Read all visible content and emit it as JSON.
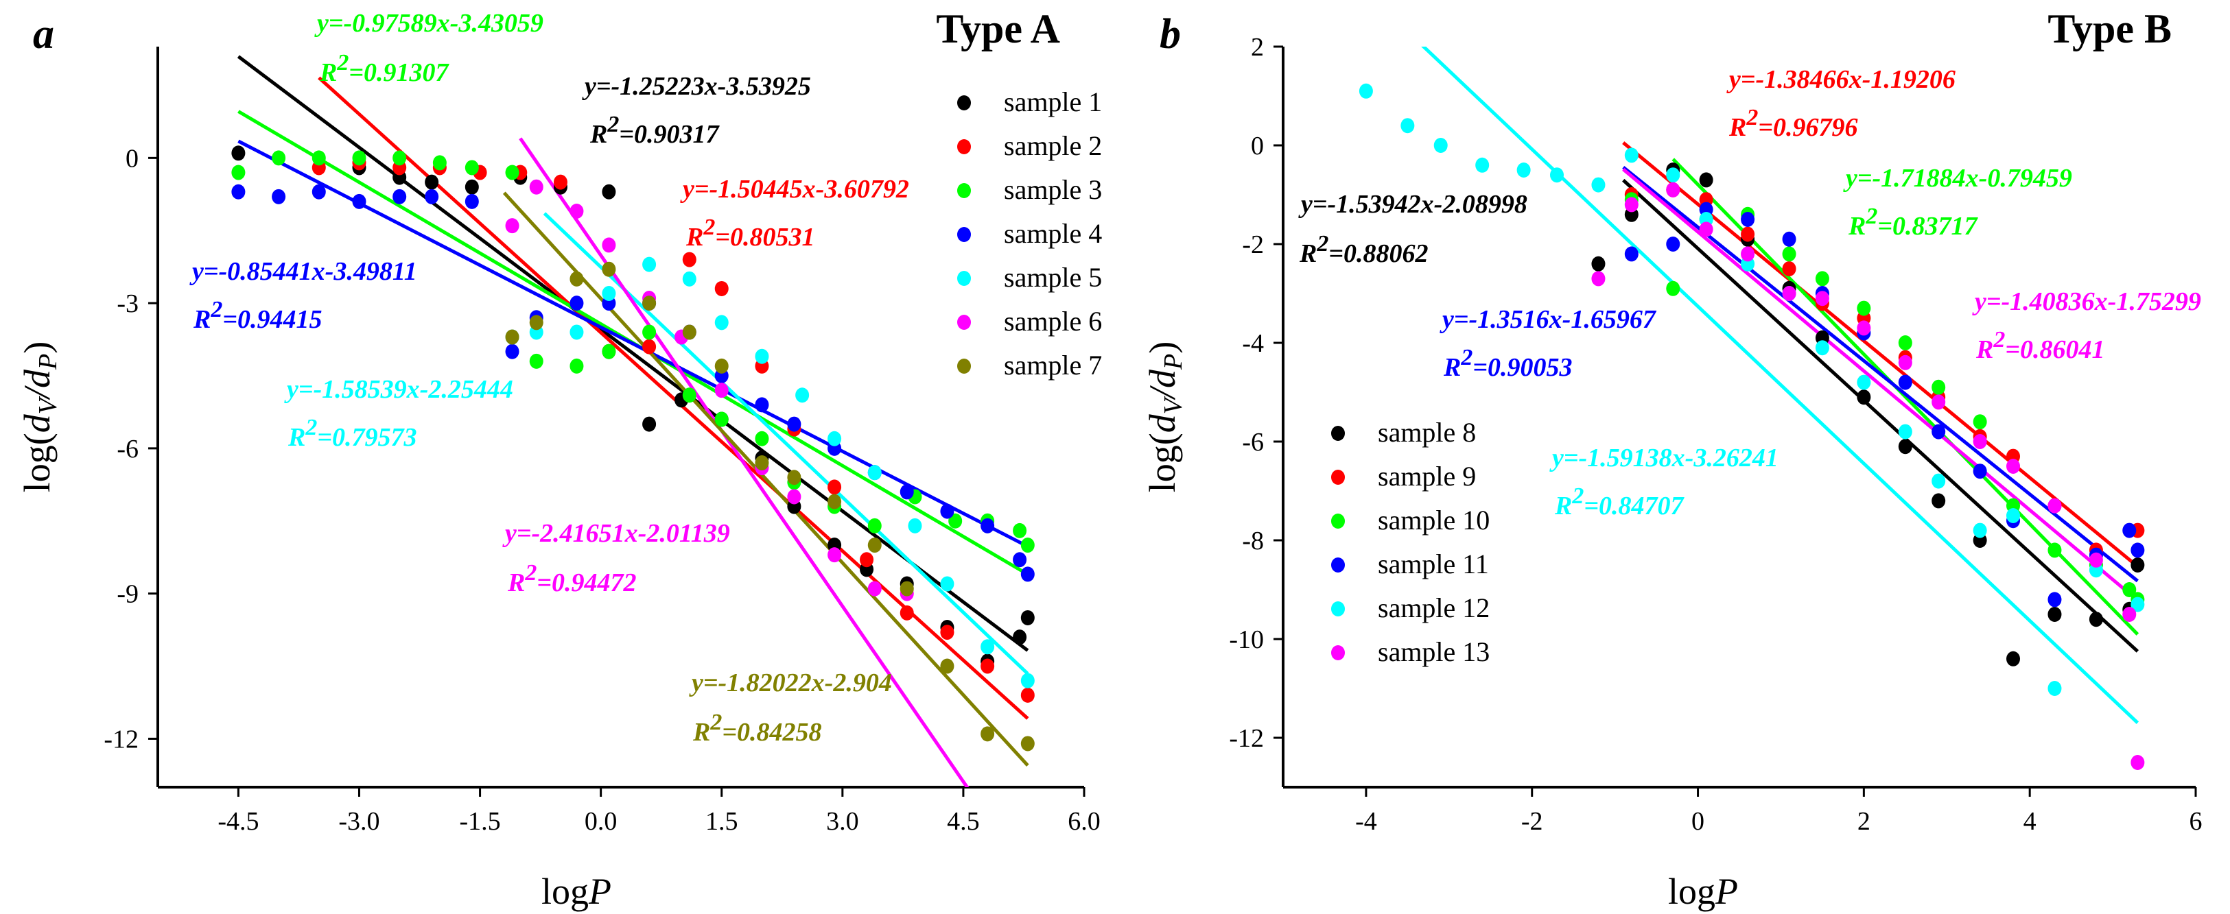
{
  "chart_data": [
    {
      "type": "scatter",
      "panel_letter": "a",
      "title": "Type A",
      "ylabel_main": "log(",
      "ylabel_d1": "d",
      "ylabel_s1": "V",
      "ylabel_slash": "/",
      "ylabel_d2": "d",
      "ylabel_s2": "P",
      "ylabel_close": ")",
      "xlabel_main": "log",
      "xlabel_var": "P",
      "xlim": [
        -5.5,
        6.0
      ],
      "ylim": [
        -13.0,
        2.3
      ],
      "xticks": [
        -4.5,
        -3.0,
        -1.5,
        0.0,
        1.5,
        3.0,
        4.5,
        6.0
      ],
      "xtick_labels": [
        "-4.5",
        "-3.0",
        "-1.5",
        "0.0",
        "1.5",
        "3.0",
        "4.5",
        "6.0"
      ],
      "yticks": [
        0,
        -3,
        -6,
        -9,
        -12
      ],
      "ytick_labels": [
        "0",
        "-3",
        "-6",
        "-9",
        "-12"
      ],
      "legend_position": "top-right",
      "series": [
        {
          "name": "sample 1",
          "color": "#000000",
          "slope": -1.25223,
          "intercept": -3.53925,
          "line_range": [
            -4.5,
            5.3
          ],
          "equation": "y=-1.25223x-3.53925",
          "r2_prefix": "R",
          "r2_exp": "2",
          "r2_value": "=0.90317",
          "x": [
            -4.5,
            -3.0,
            -2.5,
            -2.1,
            -1.6,
            -1.0,
            -0.5,
            0.1,
            0.6,
            1.0,
            1.5,
            2.0,
            2.4,
            2.9,
            3.3,
            3.8,
            4.3,
            4.8,
            5.2,
            5.3
          ],
          "y": [
            0.1,
            -0.2,
            -0.4,
            -0.5,
            -0.6,
            -0.4,
            -0.6,
            -0.7,
            -5.5,
            -5.0,
            -5.4,
            -6.2,
            -7.2,
            -8.0,
            -8.5,
            -8.8,
            -9.7,
            -10.4,
            -9.9,
            -9.5
          ]
        },
        {
          "name": "sample 2",
          "color": "#ff0000",
          "slope": -1.50445,
          "intercept": -3.60792,
          "line_range": [
            -3.5,
            5.3
          ],
          "equation": "y=-1.50445x-3.60792",
          "r2_prefix": "R",
          "r2_exp": "2",
          "r2_value": "=0.80531",
          "x": [
            -3.5,
            -3.0,
            -2.5,
            -2.0,
            -1.5,
            -1.0,
            -0.5,
            0.1,
            0.6,
            1.1,
            1.5,
            2.0,
            2.4,
            2.9,
            3.3,
            3.8,
            4.3,
            4.8,
            5.3
          ],
          "y": [
            -0.2,
            -0.1,
            -0.2,
            -0.2,
            -0.3,
            -0.3,
            -0.5,
            -4.0,
            -3.9,
            -2.1,
            -2.7,
            -4.3,
            -5.6,
            -6.8,
            -8.3,
            -9.4,
            -9.8,
            -10.5,
            -11.1
          ]
        },
        {
          "name": "sample 3",
          "color": "#00ff00",
          "slope": -0.97589,
          "intercept": -3.43059,
          "line_range": [
            -4.5,
            5.3
          ],
          "equation": "y=-0.97589x-3.43059",
          "r2_prefix": "R",
          "r2_exp": "2",
          "r2_value": "=0.91307",
          "x": [
            -4.5,
            -4.0,
            -3.5,
            -3.0,
            -2.5,
            -2.0,
            -1.6,
            -1.1,
            -0.8,
            -0.3,
            0.1,
            0.6,
            1.1,
            1.5,
            2.0,
            2.4,
            2.9,
            3.4,
            3.9,
            4.4,
            4.8,
            5.2,
            5.3
          ],
          "y": [
            -0.3,
            0.0,
            0.0,
            0.0,
            0.0,
            -0.1,
            -0.2,
            -0.3,
            -4.2,
            -4.3,
            -4.0,
            -3.6,
            -4.9,
            -5.4,
            -5.8,
            -6.7,
            -7.2,
            -7.6,
            -7.0,
            -7.5,
            -7.5,
            -7.7,
            -8.0
          ]
        },
        {
          "name": "sample 4",
          "color": "#0000ff",
          "slope": -0.85441,
          "intercept": -3.49811,
          "line_range": [
            -4.5,
            5.3
          ],
          "equation": "y=-0.85441x-3.49811",
          "r2_prefix": "R",
          "r2_exp": "2",
          "r2_value": "=0.94415",
          "x": [
            -4.5,
            -4.0,
            -3.5,
            -3.0,
            -2.5,
            -2.1,
            -1.6,
            -1.1,
            -0.8,
            -0.3,
            0.1,
            0.6,
            1.1,
            1.5,
            2.0,
            2.4,
            2.9,
            3.4,
            3.8,
            4.3,
            4.8,
            5.2,
            5.3
          ],
          "y": [
            -0.7,
            -0.8,
            -0.7,
            -0.9,
            -0.8,
            -0.8,
            -0.9,
            -4.0,
            -3.3,
            -3.0,
            -3.0,
            -3.0,
            -3.6,
            -4.5,
            -5.1,
            -5.5,
            -6.0,
            -6.5,
            -6.9,
            -7.3,
            -7.6,
            -8.3,
            -8.6
          ]
        },
        {
          "name": "sample 5",
          "color": "#00ffff",
          "slope": -1.58539,
          "intercept": -2.25444,
          "line_range": [
            -0.7,
            5.3
          ],
          "equation": "y=-1.58539x-2.25444",
          "r2_prefix": "R",
          "r2_exp": "2",
          "r2_value": "=0.79573",
          "x": [
            -1.1,
            -0.8,
            -0.3,
            0.1,
            0.6,
            1.1,
            1.5,
            2.0,
            2.5,
            2.9,
            3.4,
            3.9,
            4.3,
            4.8,
            5.3
          ],
          "y": [
            -3.7,
            -3.6,
            -3.6,
            -2.8,
            -2.2,
            -2.5,
            -3.4,
            -4.1,
            -4.9,
            -5.8,
            -6.5,
            -7.6,
            -8.8,
            -10.1,
            -10.8
          ]
        },
        {
          "name": "sample 6",
          "color": "#ff00ff",
          "slope": -2.41651,
          "intercept": -2.01139,
          "line_range": [
            -1.0,
            4.7
          ],
          "equation": "y=-2.41651x-2.01139",
          "r2_prefix": "R",
          "r2_exp": "2",
          "r2_value": "=0.94472",
          "x": [
            -1.1,
            -0.8,
            -0.3,
            0.1,
            0.6,
            1.0,
            1.5,
            2.0,
            2.4,
            2.9,
            3.4,
            3.8
          ],
          "y": [
            -1.4,
            -0.6,
            -1.1,
            -1.8,
            -2.9,
            -3.7,
            -4.8,
            -6.4,
            -7.0,
            -8.2,
            -8.9,
            -9.0
          ]
        },
        {
          "name": "sample 7",
          "color": "#808000",
          "slope": -1.82022,
          "intercept": -2.904,
          "line_range": [
            -1.2,
            5.3
          ],
          "equation": "y=-1.82022x-2.904",
          "r2_prefix": "R",
          "r2_exp": "2",
          "r2_value": "=0.84258",
          "x": [
            -1.1,
            -0.8,
            -0.3,
            0.1,
            0.6,
            1.1,
            1.5,
            2.0,
            2.4,
            2.9,
            3.4,
            3.8,
            4.3,
            4.8,
            5.3
          ],
          "y": [
            -3.7,
            -3.4,
            -2.5,
            -2.3,
            -3.0,
            -3.6,
            -4.3,
            -6.3,
            -6.6,
            -7.1,
            -8.0,
            -8.9,
            -10.5,
            -11.9,
            -12.1
          ]
        }
      ]
    },
    {
      "type": "scatter",
      "panel_letter": "b",
      "title": "Type B",
      "ylabel_main": "log(",
      "ylabel_d1": "d",
      "ylabel_s1": "V",
      "ylabel_slash": "/",
      "ylabel_d2": "d",
      "ylabel_s2": "P",
      "ylabel_close": ")",
      "xlabel_main": "log",
      "xlabel_var": "P",
      "xlim": [
        -5.0,
        6.0
      ],
      "ylim": [
        -13.0,
        2.0
      ],
      "xticks": [
        -4,
        -2,
        0,
        2,
        4,
        6
      ],
      "xtick_labels": [
        "-4",
        "-2",
        "0",
        "2",
        "4",
        "6"
      ],
      "yticks": [
        2,
        0,
        -2,
        -4,
        -6,
        -8,
        -10,
        -12
      ],
      "ytick_labels": [
        "2",
        "0",
        "-2",
        "-4",
        "-6",
        "-8",
        "-10",
        "-12"
      ],
      "legend_position": "lower-left",
      "series": [
        {
          "name": "sample 8",
          "color": "#000000",
          "slope": -1.53942,
          "intercept": -2.08998,
          "line_range": [
            -0.9,
            5.3
          ],
          "equation": "y=-1.53942x-2.08998",
          "r2_prefix": "R",
          "r2_exp": "2",
          "r2_value": "=0.88062",
          "x": [
            -1.2,
            -0.8,
            -0.3,
            0.1,
            0.6,
            1.1,
            1.5,
            2.0,
            2.5,
            2.9,
            3.4,
            3.8,
            4.3,
            4.8,
            5.2,
            5.3
          ],
          "y": [
            -2.4,
            -1.4,
            -0.5,
            -0.7,
            -1.9,
            -2.9,
            -3.9,
            -5.1,
            -6.1,
            -7.2,
            -8.0,
            -10.4,
            -9.5,
            -9.6,
            -9.4,
            -8.5
          ]
        },
        {
          "name": "sample 9",
          "color": "#ff0000",
          "slope": -1.38466,
          "intercept": -1.19206,
          "line_range": [
            -0.9,
            5.3
          ],
          "equation": "y=-1.38466x-1.19206",
          "r2_prefix": "R",
          "r2_exp": "2",
          "r2_value": "=0.96796",
          "x": [
            -0.8,
            -0.3,
            0.1,
            0.6,
            1.1,
            1.5,
            2.0,
            2.5,
            2.9,
            3.4,
            3.8,
            4.3,
            4.8,
            5.3
          ],
          "y": [
            -1.0,
            -0.9,
            -1.1,
            -1.8,
            -2.5,
            -3.2,
            -3.5,
            -4.3,
            -5.1,
            -5.9,
            -6.3,
            -7.3,
            -8.2,
            -7.8
          ]
        },
        {
          "name": "sample 10",
          "color": "#00ff00",
          "slope": -1.71884,
          "intercept": -0.79459,
          "line_range": [
            -0.3,
            5.3
          ],
          "equation": "y=-1.71884x-0.79459",
          "r2_prefix": "R",
          "r2_exp": "2",
          "r2_value": "=0.83717",
          "x": [
            -0.8,
            -0.3,
            0.1,
            0.6,
            1.1,
            1.5,
            2.0,
            2.5,
            2.9,
            3.4,
            3.8,
            4.3,
            4.8,
            5.2,
            5.3
          ],
          "y": [
            -1.1,
            -2.9,
            -1.5,
            -1.4,
            -2.2,
            -2.7,
            -3.3,
            -4.0,
            -4.9,
            -5.6,
            -7.3,
            -8.2,
            -8.5,
            -9.0,
            -9.2
          ]
        },
        {
          "name": "sample 11",
          "color": "#0000ff",
          "slope": -1.3516,
          "intercept": -1.65967,
          "line_range": [
            -0.9,
            5.3
          ],
          "equation": "y=-1.3516x-1.65967",
          "r2_prefix": "R",
          "r2_exp": "2",
          "r2_value": "=0.90053",
          "x": [
            -0.8,
            -0.3,
            0.1,
            0.6,
            1.1,
            1.5,
            2.0,
            2.5,
            2.9,
            3.4,
            3.8,
            4.3,
            4.8,
            5.2,
            5.3
          ],
          "y": [
            -2.2,
            -2.0,
            -1.3,
            -1.5,
            -1.9,
            -3.0,
            -3.8,
            -4.8,
            -5.8,
            -6.6,
            -7.6,
            -9.2,
            -8.3,
            -7.8,
            -8.2
          ]
        },
        {
          "name": "sample 12",
          "color": "#00ffff",
          "slope": -1.59138,
          "intercept": -3.26241,
          "line_range": [
            -3.5,
            5.3
          ],
          "equation": "y=-1.59138x-3.26241",
          "r2_prefix": "R",
          "r2_exp": "2",
          "r2_value": "=0.84707",
          "x": [
            -4.0,
            -3.5,
            -3.1,
            -2.6,
            -2.1,
            -1.7,
            -1.2,
            -0.8,
            -0.3,
            0.1,
            0.6,
            1.1,
            1.5,
            2.0,
            2.5,
            2.9,
            3.4,
            3.8,
            4.3,
            4.8,
            5.3
          ],
          "y": [
            1.1,
            0.4,
            0.0,
            -0.4,
            -0.5,
            -0.6,
            -0.8,
            -0.2,
            -0.6,
            -1.5,
            -2.4,
            -3.0,
            -4.1,
            -4.8,
            -5.8,
            -6.8,
            -7.8,
            -7.5,
            -11.0,
            -8.6,
            -9.3
          ]
        },
        {
          "name": "sample 13",
          "color": "#ff00ff",
          "slope": -1.40836,
          "intercept": -1.75299,
          "line_range": [
            -0.9,
            5.3
          ],
          "equation": "y=-1.40836x-1.75299",
          "r2_prefix": "R",
          "r2_exp": "2",
          "r2_value": "=0.86041",
          "x": [
            -1.2,
            -0.8,
            -0.3,
            0.1,
            0.6,
            1.1,
            1.5,
            2.0,
            2.5,
            2.9,
            3.4,
            3.8,
            4.3,
            4.8,
            5.2,
            5.3
          ],
          "y": [
            -2.7,
            -1.2,
            -0.9,
            -1.7,
            -2.2,
            -3.0,
            -3.1,
            -3.7,
            -4.4,
            -5.2,
            -6.0,
            -6.5,
            -7.3,
            -8.4,
            -9.5,
            -12.5
          ]
        }
      ]
    }
  ]
}
